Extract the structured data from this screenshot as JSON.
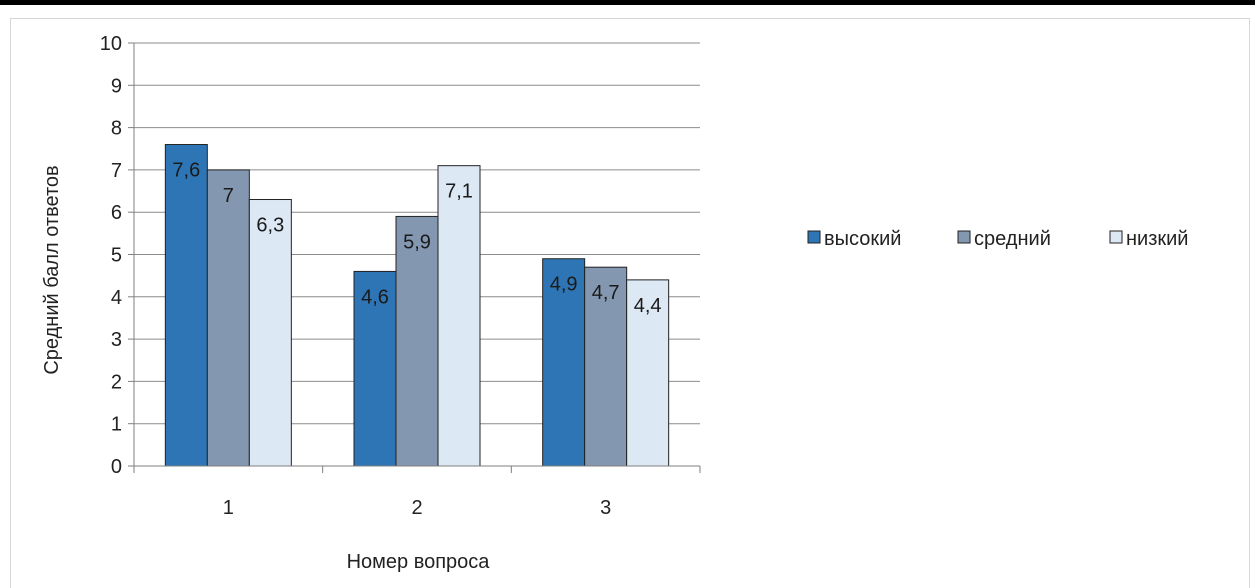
{
  "chart_data": {
    "type": "bar",
    "title": "",
    "xlabel": "Номер вопроса",
    "ylabel": "Средний балл ответов",
    "ylim": [
      0,
      10
    ],
    "yticks": [
      "0",
      "1",
      "2",
      "3",
      "4",
      "5",
      "6",
      "7",
      "8",
      "9",
      "10"
    ],
    "categories": [
      "1",
      "2",
      "3"
    ],
    "grid": true,
    "legend_position": "right",
    "series": [
      {
        "name": "высокий",
        "color": "#2e75b6",
        "values": [
          7.6,
          4.6,
          4.9
        ],
        "labels": [
          "7,6",
          "4,6",
          "4,9"
        ]
      },
      {
        "name": "средний",
        "color": "#8497b0",
        "values": [
          7,
          5.9,
          4.7
        ],
        "labels": [
          "7",
          "5,9",
          "4,7"
        ]
      },
      {
        "name": "низкий",
        "color": "#dde8f5",
        "values": [
          6.3,
          7.1,
          4.4
        ],
        "labels": [
          "6,3",
          "7,1",
          "4,4"
        ]
      }
    ]
  }
}
